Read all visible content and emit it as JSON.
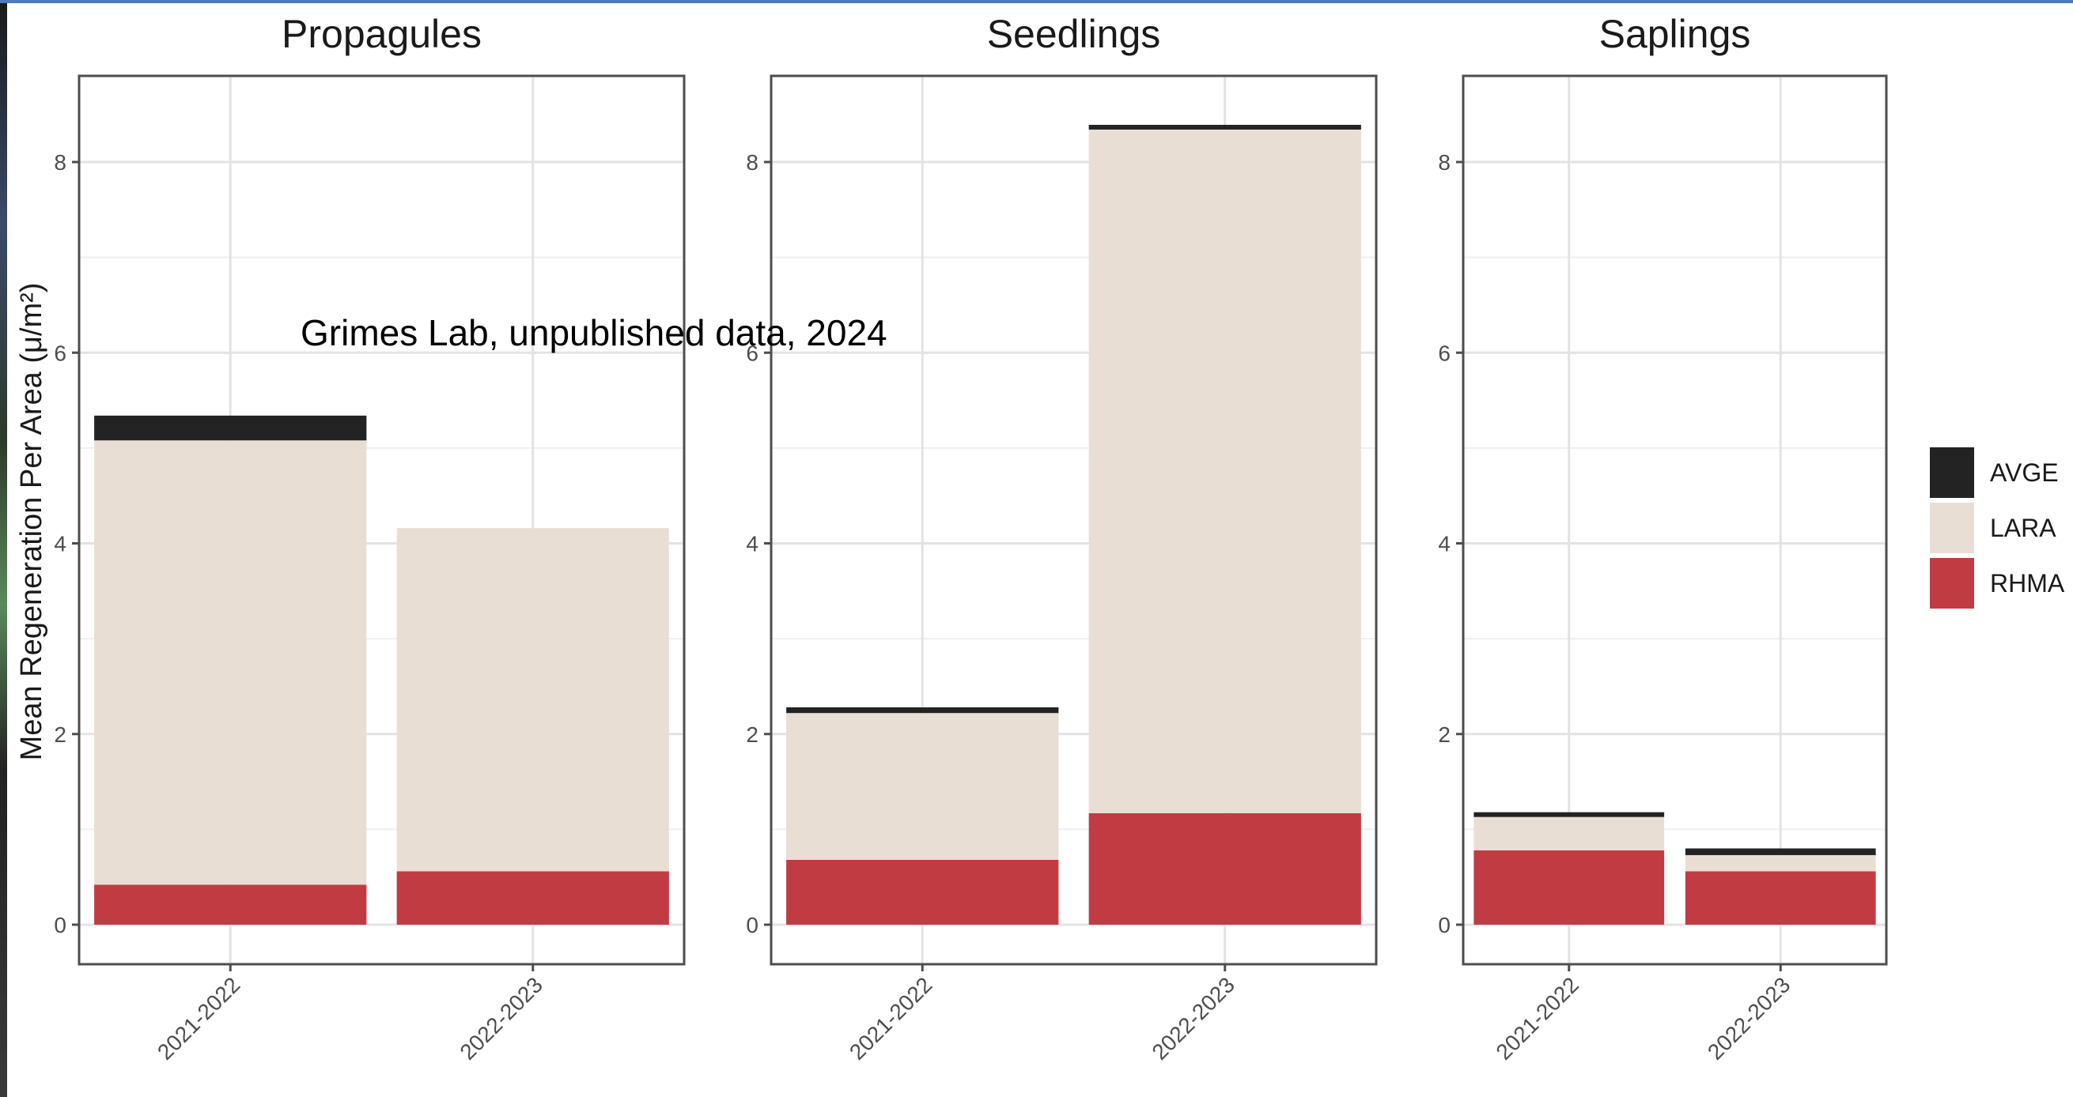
{
  "chart_data": {
    "type": "bar",
    "stacked": true,
    "ylabel": "Mean Regeneration Per Area (μ/m²)",
    "ylim": [
      0,
      8.9
    ],
    "yticks": [
      0,
      2,
      4,
      6,
      8
    ],
    "categories": [
      "2021-2022",
      "2022-2023"
    ],
    "annotation": "Grimes Lab, unpublished data, 2024",
    "legend_position": "right",
    "grid": true,
    "colors": {
      "AVGE": "#232323",
      "LARA": "#e8ded4",
      "RHMA": "#c13b43"
    },
    "legend": [
      "AVGE",
      "LARA",
      "RHMA"
    ],
    "panels": [
      {
        "title": "Propagules",
        "series": [
          {
            "name": "RHMA",
            "values": [
              0.42,
              0.56
            ]
          },
          {
            "name": "LARA",
            "values": [
              4.66,
              3.6
            ]
          },
          {
            "name": "AVGE",
            "values": [
              0.26,
              0.0
            ]
          }
        ]
      },
      {
        "title": "Seedlings",
        "series": [
          {
            "name": "RHMA",
            "values": [
              0.68,
              1.17
            ]
          },
          {
            "name": "LARA",
            "values": [
              1.54,
              7.17
            ]
          },
          {
            "name": "AVGE",
            "values": [
              0.06,
              0.05
            ]
          }
        ]
      },
      {
        "title": "Saplings",
        "series": [
          {
            "name": "RHMA",
            "values": [
              0.78,
              0.56
            ]
          },
          {
            "name": "LARA",
            "values": [
              0.35,
              0.17
            ]
          },
          {
            "name": "AVGE",
            "values": [
              0.05,
              0.07
            ]
          }
        ]
      }
    ]
  }
}
